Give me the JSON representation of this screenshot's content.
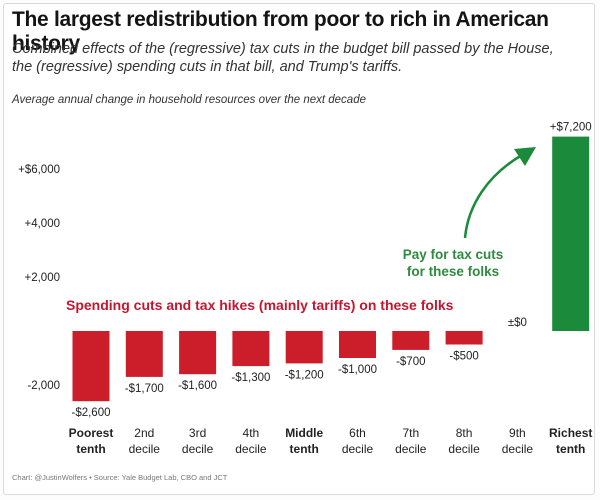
{
  "title": "The largest redistribution from poor to rich in American history",
  "subtitle_line1": "Combined effects of the (regressive) tax cuts in the budget bill passed by the House,",
  "subtitle_line2": "the (regressive) spending cuts in that bill, and Trump's tariffs.",
  "footer": "Chart: @JustinWolfers • Source: Yale Budget Lab, CBO and JCT",
  "colors": {
    "negative": "#cc1d2b",
    "positive": "#1b8a3a",
    "red_text": "#c3162f",
    "green_text": "#2e8b3e"
  },
  "chart_data": {
    "type": "bar",
    "title": "The largest redistribution from poor to rich in American history",
    "ylabel": "Average annual change in household resources over the next decade",
    "xlabel": "",
    "ylim": [
      -3200,
      7600
    ],
    "grid": false,
    "yticks": [
      {
        "value": 6000,
        "label": "+$6,000"
      },
      {
        "value": 4000,
        "label": "+4,000"
      },
      {
        "value": 2000,
        "label": "+2,000"
      },
      {
        "value": -2000,
        "label": "-2,000"
      }
    ],
    "categories": [
      {
        "line1": "Poorest",
        "line2": "tenth",
        "bold": true
      },
      {
        "line1": "2nd",
        "line2": "decile",
        "bold": false
      },
      {
        "line1": "3rd",
        "line2": "decile",
        "bold": false
      },
      {
        "line1": "4th",
        "line2": "decile",
        "bold": false
      },
      {
        "line1": "Middle",
        "line2": "tenth",
        "bold": true
      },
      {
        "line1": "6th",
        "line2": "decile",
        "bold": false
      },
      {
        "line1": "7th",
        "line2": "decile",
        "bold": false
      },
      {
        "line1": "8th",
        "line2": "decile",
        "bold": false
      },
      {
        "line1": "9th",
        "line2": "decile",
        "bold": false
      },
      {
        "line1": "Richest",
        "line2": "tenth",
        "bold": true
      }
    ],
    "values": [
      -2600,
      -1700,
      -1600,
      -1300,
      -1200,
      -1000,
      -700,
      -500,
      0,
      7200
    ],
    "value_labels": [
      "-$2,600",
      "-$1,700",
      "-$1,600",
      "-$1,300",
      "-$1,200",
      "-$1,000",
      "-$700",
      "-$500",
      "±$0",
      "+$7,200"
    ],
    "annotations": {
      "negative": "Spending cuts and tax hikes (mainly tariffs) on these folks",
      "positive_line1": "Pay for tax cuts",
      "positive_line2": "for these folks"
    }
  }
}
